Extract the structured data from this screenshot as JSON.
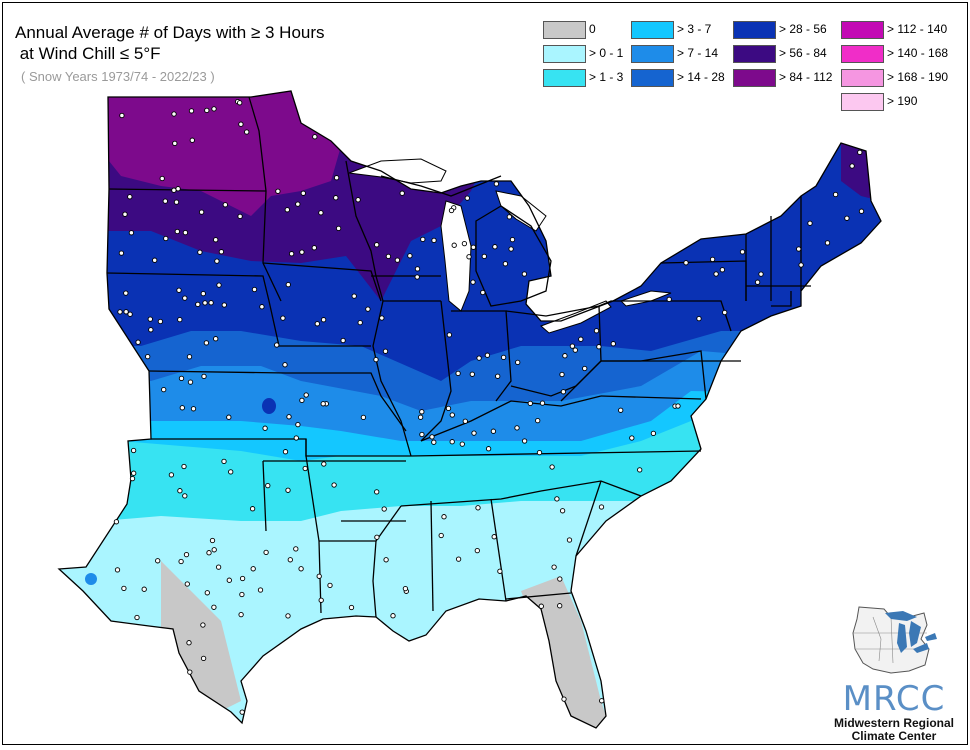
{
  "title_line1": "Annual Average # of Days with ≥ 3 Hours",
  "title_line2": " at Wind Chill ≤ 5°F",
  "subtitle": "( Snow Years 1973/74 - 2022/23 )",
  "legend": [
    {
      "label": "0",
      "color": "#c8c8c8"
    },
    {
      "label": "> 0 - 1",
      "color": "#aaf5ff"
    },
    {
      "label": "> 1 - 3",
      "color": "#37e3f2"
    },
    {
      "label": "> 3 - 7",
      "color": "#14c7ff"
    },
    {
      "label": "> 7 - 14",
      "color": "#1e8ce9"
    },
    {
      "label": "> 14 - 28",
      "color": "#1564d0"
    },
    {
      "label": "> 28 - 56",
      "color": "#0a32b4"
    },
    {
      "label": "> 56 - 84",
      "color": "#3c0a82"
    },
    {
      "label": "> 84 - 112",
      "color": "#7d0a8c"
    },
    {
      "label": "> 112 - 140",
      "color": "#c30ab4"
    },
    {
      "label": "> 140 - 168",
      "color": "#f02dc8"
    },
    {
      "label": "> 168 - 190",
      "color": "#f596e1"
    },
    {
      "label": "> 190",
      "color": "#fcc8f0"
    }
  ],
  "logo": {
    "name": "MRCC",
    "line1": "Midwestern Regional",
    "line2": "Climate Center",
    "color": "#5a8fc6"
  }
}
